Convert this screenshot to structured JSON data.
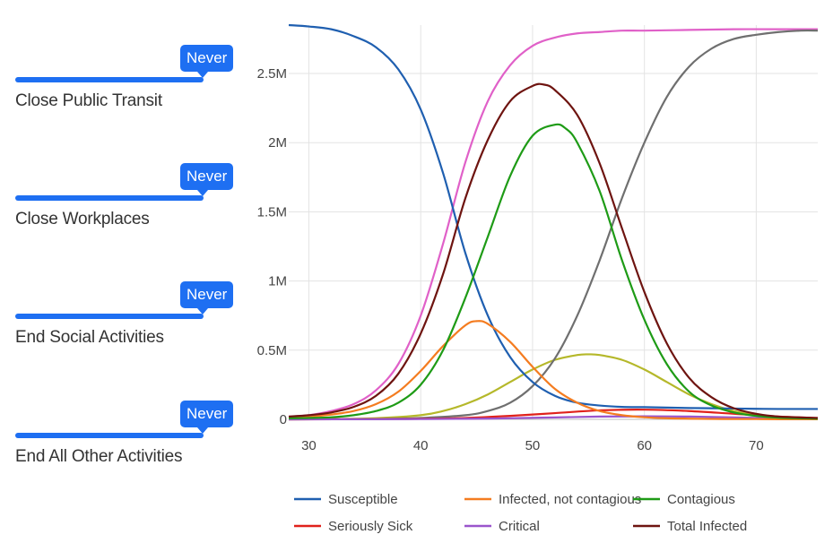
{
  "controls": [
    {
      "value_label": "Never",
      "label": "Close Public Transit"
    },
    {
      "value_label": "Never",
      "label": "Close Workplaces"
    },
    {
      "value_label": "Never",
      "label": "End Social Activities"
    },
    {
      "value_label": "Never",
      "label": "End All Other Activities"
    }
  ],
  "colors": {
    "accent": "#1e6ff2"
  },
  "chart_data": {
    "type": "line",
    "title": "",
    "xlabel": "",
    "ylabel": "",
    "xlim": [
      28.2,
      75.5
    ],
    "ylim": [
      0,
      2.85
    ],
    "x_ticks": [
      30,
      40,
      50,
      60,
      70
    ],
    "x_tick_labels": [
      "30",
      "40",
      "50",
      "60",
      "70"
    ],
    "y_ticks": [
      0,
      0.5,
      1,
      1.5,
      2,
      2.5
    ],
    "y_tick_labels": [
      "0",
      "0.5M",
      "1M",
      "1.5M",
      "2M",
      "2.5M"
    ],
    "y_unit": "millions",
    "grid": true,
    "legend_position": "bottom",
    "series": [
      {
        "name": "Susceptible",
        "color": "#1f5fb0",
        "x": [
          28.2,
          30,
          32,
          34,
          36,
          38,
          40,
          42,
          44,
          46,
          48,
          50,
          52,
          54,
          56,
          58,
          60,
          62,
          64,
          66,
          68,
          70,
          72,
          75.5
        ],
        "y": [
          2.85,
          2.84,
          2.82,
          2.77,
          2.69,
          2.53,
          2.24,
          1.78,
          1.2,
          0.75,
          0.45,
          0.27,
          0.17,
          0.12,
          0.1,
          0.09,
          0.088,
          0.085,
          0.082,
          0.08,
          0.078,
          0.076,
          0.075,
          0.075
        ]
      },
      {
        "name": "Infected, not contagious",
        "color": "#f47c20",
        "x": [
          28.2,
          30,
          32,
          34,
          36,
          38,
          40,
          42,
          44,
          45,
          46,
          48,
          50,
          52,
          54,
          56,
          58,
          60,
          62,
          64,
          66,
          68,
          70,
          72,
          75.5
        ],
        "y": [
          0.015,
          0.02,
          0.035,
          0.06,
          0.11,
          0.2,
          0.35,
          0.53,
          0.68,
          0.71,
          0.69,
          0.56,
          0.38,
          0.22,
          0.12,
          0.06,
          0.03,
          0.015,
          0.008,
          0.005,
          0.003,
          0.002,
          0.002,
          0.001,
          0.001
        ]
      },
      {
        "name": "Contagious",
        "color": "#1e9b16",
        "x": [
          28.2,
          30,
          32,
          34,
          36,
          38,
          40,
          42,
          44,
          46,
          48,
          50,
          52,
          53,
          54,
          56,
          58,
          60,
          62,
          64,
          66,
          68,
          70,
          72,
          75.5
        ],
        "y": [
          0.008,
          0.01,
          0.015,
          0.03,
          0.06,
          0.12,
          0.25,
          0.5,
          0.88,
          1.32,
          1.76,
          2.05,
          2.13,
          2.1,
          2.0,
          1.65,
          1.15,
          0.72,
          0.4,
          0.2,
          0.1,
          0.05,
          0.025,
          0.012,
          0.005
        ]
      },
      {
        "name": "Seriously Sick",
        "color": "#e0211b",
        "x": [
          28.2,
          36,
          40,
          44,
          48,
          52,
          56,
          60,
          64,
          68,
          72,
          75.5
        ],
        "y": [
          0,
          0.002,
          0.004,
          0.01,
          0.025,
          0.045,
          0.065,
          0.07,
          0.06,
          0.04,
          0.02,
          0.01
        ]
      },
      {
        "name": "Critical",
        "color": "#9a55cc",
        "x": [
          28.2,
          36,
          40,
          44,
          48,
          52,
          56,
          60,
          64,
          68,
          72,
          75.5
        ],
        "y": [
          0,
          0.001,
          0.002,
          0.004,
          0.008,
          0.014,
          0.02,
          0.022,
          0.02,
          0.014,
          0.008,
          0.005
        ]
      },
      {
        "name": "Total Infected",
        "color": "#6e1410",
        "x": [
          28.2,
          30,
          32,
          34,
          36,
          38,
          40,
          42,
          44,
          46,
          48,
          50,
          51,
          52,
          54,
          56,
          58,
          60,
          62,
          64,
          66,
          68,
          70,
          72,
          75.5
        ],
        "y": [
          0.02,
          0.03,
          0.05,
          0.09,
          0.17,
          0.33,
          0.62,
          1.05,
          1.6,
          2.02,
          2.3,
          2.41,
          2.42,
          2.38,
          2.2,
          1.85,
          1.38,
          0.92,
          0.55,
          0.3,
          0.16,
          0.08,
          0.04,
          0.02,
          0.01
        ]
      },
      {
        "name": "",
        "color": "#e060c8",
        "x": [
          28.2,
          30,
          32,
          34,
          36,
          38,
          40,
          42,
          44,
          46,
          48,
          50,
          52,
          54,
          56,
          58,
          60,
          64,
          68,
          72,
          75.5
        ],
        "y": [
          0.02,
          0.03,
          0.06,
          0.11,
          0.21,
          0.4,
          0.75,
          1.27,
          1.86,
          2.3,
          2.56,
          2.7,
          2.76,
          2.79,
          2.8,
          2.81,
          2.81,
          2.815,
          2.82,
          2.82,
          2.82
        ]
      },
      {
        "name": "",
        "color": "#b5b82a",
        "x": [
          28.2,
          32,
          36,
          40,
          42,
          44,
          46,
          48,
          50,
          52,
          54,
          55,
          56,
          58,
          60,
          62,
          64,
          66,
          68,
          70,
          72,
          75.5
        ],
        "y": [
          0,
          0.002,
          0.008,
          0.03,
          0.06,
          0.11,
          0.18,
          0.27,
          0.36,
          0.43,
          0.465,
          0.47,
          0.465,
          0.43,
          0.36,
          0.27,
          0.18,
          0.11,
          0.06,
          0.03,
          0.015,
          0.005
        ]
      },
      {
        "name": "",
        "color": "#6f6f6f",
        "x": [
          28.2,
          36,
          40,
          44,
          46,
          48,
          50,
          52,
          54,
          56,
          58,
          60,
          62,
          64,
          66,
          68,
          70,
          72,
          74,
          75.5
        ],
        "y": [
          0,
          0.003,
          0.01,
          0.03,
          0.06,
          0.12,
          0.24,
          0.44,
          0.75,
          1.15,
          1.6,
          2.0,
          2.33,
          2.55,
          2.68,
          2.75,
          2.78,
          2.8,
          2.81,
          2.81
        ]
      }
    ]
  }
}
